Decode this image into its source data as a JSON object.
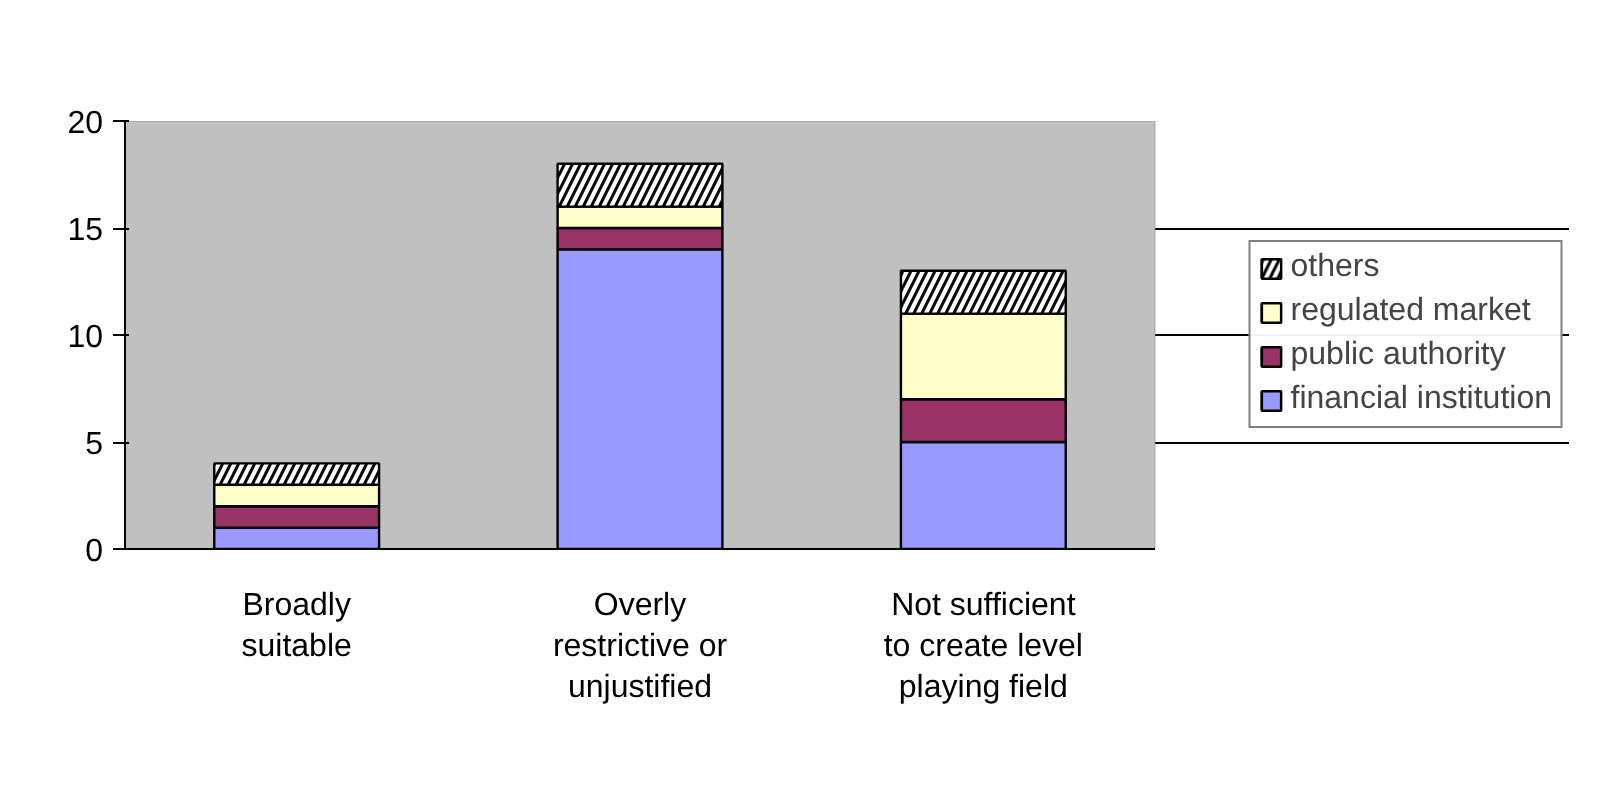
{
  "chart_data": {
    "type": "bar",
    "stacked": true,
    "categories": [
      "Broadly\nsuitable",
      "Overly\nrestrictive or\nunjustified",
      "Not sufficient\nto create level\nplaying field"
    ],
    "series": [
      {
        "name": "financial institution",
        "color": "#9999ff",
        "values": [
          1,
          14,
          5
        ]
      },
      {
        "name": "public authority",
        "color": "#993366",
        "values": [
          1,
          1,
          2
        ]
      },
      {
        "name": "regulated market",
        "color": "#ffffcc",
        "values": [
          1,
          1,
          4
        ]
      },
      {
        "name": "others",
        "color": "#ffffff",
        "values": [
          1,
          2,
          2
        ]
      }
    ],
    "ylim": [
      0,
      20
    ],
    "yticks": [
      0,
      5,
      10,
      15,
      20
    ],
    "grid": "y",
    "legend": "right"
  }
}
